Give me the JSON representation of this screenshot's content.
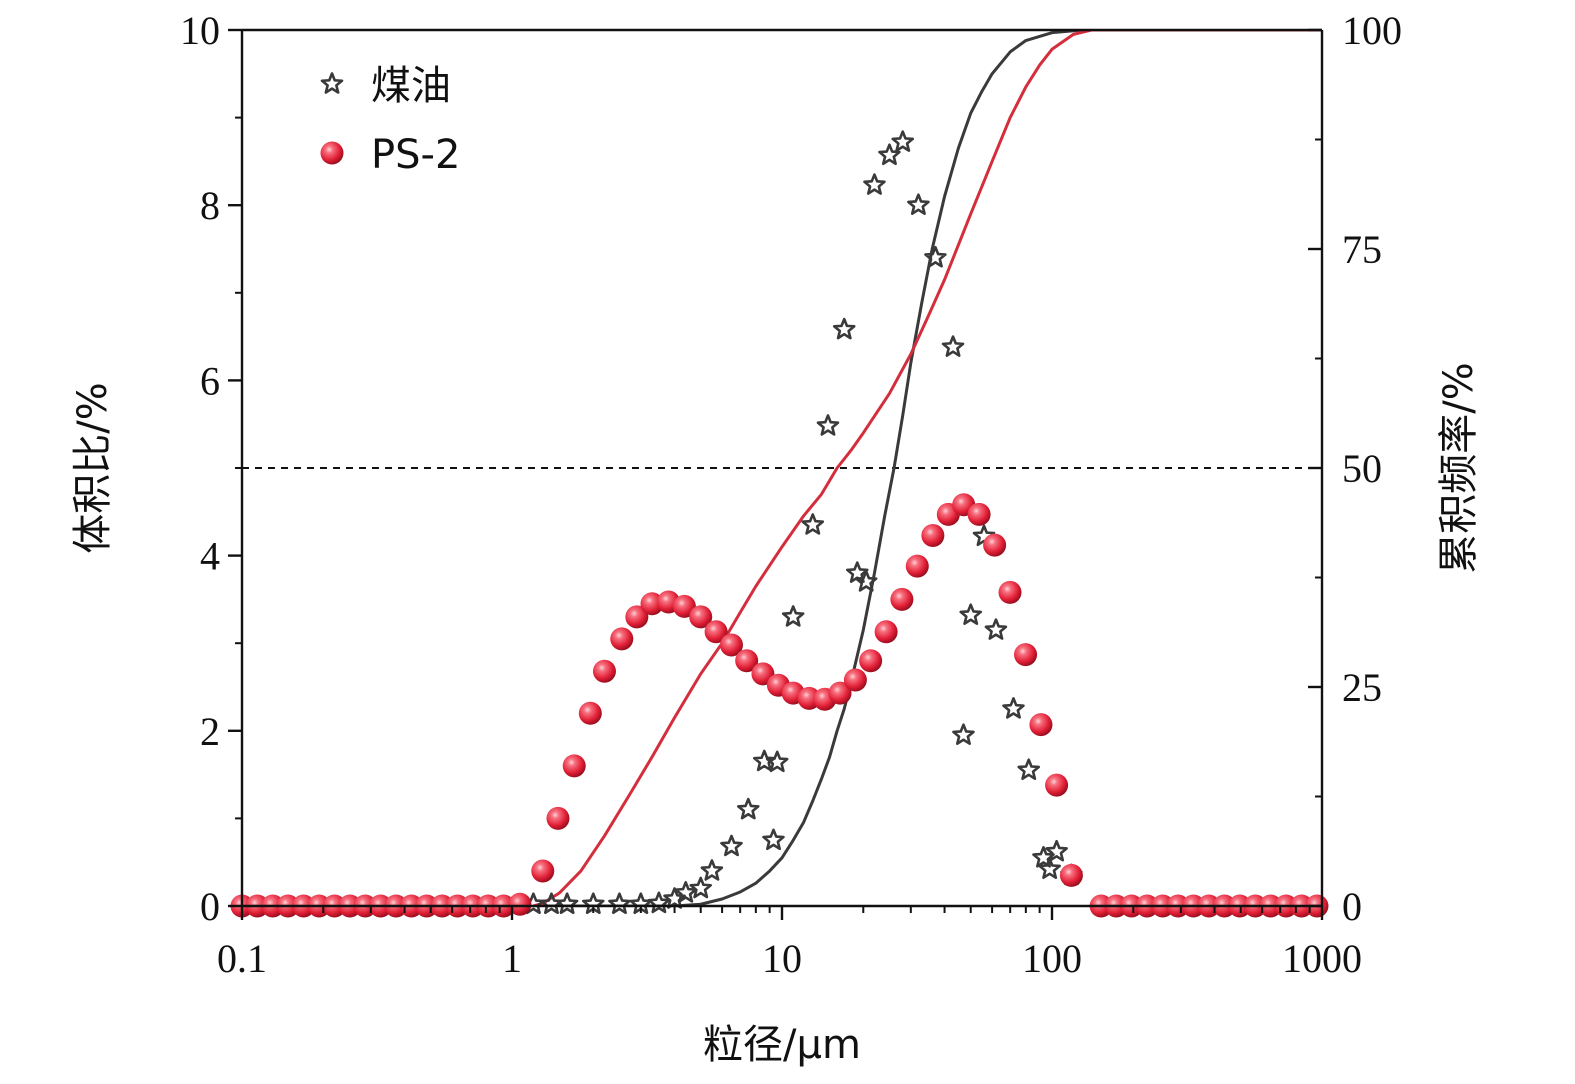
{
  "chart_data": {
    "type": "scatter",
    "x_scale": "log",
    "xlim": [
      0.1,
      1000
    ],
    "ylim_left": [
      0,
      10
    ],
    "ylim_right": [
      0,
      100
    ],
    "xlabel": "粒径/μm",
    "ylabel_left": "体积比/%",
    "ylabel_right": "累积频率/%",
    "x_ticks": [
      0.1,
      1,
      10,
      100,
      1000
    ],
    "x_tick_labels": [
      "0.1",
      "1",
      "10",
      "100",
      "1000"
    ],
    "y_left_ticks": [
      0,
      2,
      4,
      6,
      8,
      10
    ],
    "y_left_tick_labels": [
      "0",
      "2",
      "4",
      "6",
      "8",
      "10"
    ],
    "y_right_ticks": [
      0,
      25,
      50,
      75,
      100
    ],
    "y_right_tick_labels": [
      "0",
      "25",
      "50",
      "75",
      "100"
    ],
    "reference_line": {
      "axis": "right",
      "value": 50,
      "style": "dashed"
    },
    "legend_position": "top-left",
    "series": [
      {
        "name": "煤油",
        "kind": "scatter",
        "axis": "left",
        "marker": "star",
        "color": "#3a3a3a",
        "points": [
          [
            1.2,
            0.02
          ],
          [
            1.4,
            0.02
          ],
          [
            1.6,
            0.02
          ],
          [
            2.0,
            0.02
          ],
          [
            2.5,
            0.02
          ],
          [
            3.0,
            0.02
          ],
          [
            3.5,
            0.03
          ],
          [
            4.0,
            0.08
          ],
          [
            4.4,
            0.15
          ],
          [
            5.0,
            0.2
          ],
          [
            5.5,
            0.4
          ],
          [
            6.5,
            0.68
          ],
          [
            7.5,
            1.1
          ],
          [
            8.6,
            1.65
          ],
          [
            9.6,
            1.64
          ],
          [
            9.3,
            0.75
          ],
          [
            11.0,
            3.3
          ],
          [
            13.0,
            4.35
          ],
          [
            14.8,
            5.48
          ],
          [
            17.0,
            6.58
          ],
          [
            19.0,
            3.8
          ],
          [
            20.5,
            3.7
          ],
          [
            22.0,
            8.23
          ],
          [
            25.0,
            8.57
          ],
          [
            28.0,
            8.72
          ],
          [
            32.0,
            8.0
          ],
          [
            37.0,
            7.4
          ],
          [
            43.0,
            6.38
          ],
          [
            47.0,
            1.95
          ],
          [
            50.0,
            3.32
          ],
          [
            56.0,
            4.22
          ],
          [
            62.0,
            3.15
          ],
          [
            72.0,
            2.25
          ],
          [
            82.0,
            1.55
          ],
          [
            93.0,
            0.55
          ],
          [
            98.0,
            0.42
          ],
          [
            104.0,
            0.62
          ],
          [
            118.0,
            0.35
          ]
        ]
      },
      {
        "name": "PS-2",
        "kind": "scatter",
        "axis": "left",
        "marker": "sphere",
        "color": "#e8334a",
        "points": [
          [
            0.1,
            0.0
          ],
          [
            0.114,
            0.0
          ],
          [
            0.13,
            0.0
          ],
          [
            0.148,
            0.0
          ],
          [
            0.169,
            0.0
          ],
          [
            0.193,
            0.0
          ],
          [
            0.22,
            0.0
          ],
          [
            0.251,
            0.0
          ],
          [
            0.286,
            0.0
          ],
          [
            0.326,
            0.0
          ],
          [
            0.372,
            0.0
          ],
          [
            0.424,
            0.0
          ],
          [
            0.483,
            0.0
          ],
          [
            0.551,
            0.0
          ],
          [
            0.628,
            0.0
          ],
          [
            0.716,
            0.0
          ],
          [
            0.816,
            0.0
          ],
          [
            0.93,
            0.0
          ],
          [
            1.07,
            0.02
          ],
          [
            1.3,
            0.4
          ],
          [
            1.48,
            1.0
          ],
          [
            1.7,
            1.6
          ],
          [
            1.95,
            2.2
          ],
          [
            2.2,
            2.68
          ],
          [
            2.55,
            3.05
          ],
          [
            2.9,
            3.3
          ],
          [
            3.3,
            3.45
          ],
          [
            3.8,
            3.47
          ],
          [
            4.35,
            3.42
          ],
          [
            5.0,
            3.3
          ],
          [
            5.7,
            3.13
          ],
          [
            6.5,
            2.98
          ],
          [
            7.4,
            2.8
          ],
          [
            8.5,
            2.65
          ],
          [
            9.7,
            2.52
          ],
          [
            11.0,
            2.43
          ],
          [
            12.6,
            2.37
          ],
          [
            14.4,
            2.36
          ],
          [
            16.4,
            2.43
          ],
          [
            18.7,
            2.58
          ],
          [
            21.3,
            2.8
          ],
          [
            24.3,
            3.13
          ],
          [
            27.8,
            3.5
          ],
          [
            31.7,
            3.88
          ],
          [
            36.2,
            4.23
          ],
          [
            41.3,
            4.47
          ],
          [
            47.1,
            4.58
          ],
          [
            53.7,
            4.47
          ],
          [
            61.3,
            4.12
          ],
          [
            69.9,
            3.58
          ],
          [
            79.8,
            2.87
          ],
          [
            91.0,
            2.07
          ],
          [
            104.0,
            1.38
          ],
          [
            118.0,
            0.35
          ],
          [
            152,
            0.0
          ],
          [
            173,
            0.0
          ],
          [
            197,
            0.0
          ],
          [
            225,
            0.0
          ],
          [
            257,
            0.0
          ],
          [
            293,
            0.0
          ],
          [
            334,
            0.0
          ],
          [
            381,
            0.0
          ],
          [
            435,
            0.0
          ],
          [
            496,
            0.0
          ],
          [
            566,
            0.0
          ],
          [
            645,
            0.0
          ],
          [
            736,
            0.0
          ],
          [
            840,
            0.0
          ],
          [
            958,
            0.0
          ]
        ]
      },
      {
        "kind": "line",
        "axis": "right",
        "color": "#3a3a3a",
        "points": [
          [
            1.2,
            0
          ],
          [
            4.0,
            0
          ],
          [
            5.0,
            0.2
          ],
          [
            6.0,
            0.8
          ],
          [
            7.0,
            1.6
          ],
          [
            8.0,
            2.6
          ],
          [
            9.0,
            4.0
          ],
          [
            10.0,
            5.5
          ],
          [
            11.0,
            7.5
          ],
          [
            12.0,
            9.5
          ],
          [
            13.0,
            12.0
          ],
          [
            14.0,
            14.5
          ],
          [
            15.0,
            17.0
          ],
          [
            16.0,
            20.0
          ],
          [
            17.0,
            22.5
          ],
          [
            18.0,
            25.5
          ],
          [
            20.0,
            31.5
          ],
          [
            22.0,
            38.0
          ],
          [
            24.0,
            44.5
          ],
          [
            26.0,
            50.0
          ],
          [
            28.0,
            56.0
          ],
          [
            30.0,
            62.0
          ],
          [
            33.0,
            69.0
          ],
          [
            36.0,
            75.0
          ],
          [
            40.0,
            81.0
          ],
          [
            45.0,
            86.5
          ],
          [
            50.0,
            90.5
          ],
          [
            55.0,
            93.0
          ],
          [
            60.0,
            95.0
          ],
          [
            70.0,
            97.5
          ],
          [
            80.0,
            98.8
          ],
          [
            100.0,
            99.7
          ],
          [
            130.0,
            100
          ],
          [
            1000.0,
            100
          ]
        ]
      },
      {
        "kind": "line",
        "axis": "right",
        "color": "#d42e3d",
        "points": [
          [
            1.2,
            0
          ],
          [
            1.3,
            0.3
          ],
          [
            1.5,
            1.5
          ],
          [
            1.8,
            4.0
          ],
          [
            2.2,
            8.0
          ],
          [
            2.7,
            12.5
          ],
          [
            3.3,
            17.0
          ],
          [
            4.0,
            21.5
          ],
          [
            5.0,
            26.5
          ],
          [
            6.0,
            30.0
          ],
          [
            7.0,
            33.5
          ],
          [
            8.0,
            36.5
          ],
          [
            10.0,
            41.0
          ],
          [
            12.0,
            44.5
          ],
          [
            14.0,
            47.0
          ],
          [
            16.0,
            50.0
          ],
          [
            18.0,
            52.0
          ],
          [
            20.0,
            54.0
          ],
          [
            25.0,
            58.5
          ],
          [
            30.0,
            63.0
          ],
          [
            35.0,
            67.5
          ],
          [
            40.0,
            71.5
          ],
          [
            50.0,
            79.0
          ],
          [
            60.0,
            85.0
          ],
          [
            70.0,
            90.0
          ],
          [
            80.0,
            93.5
          ],
          [
            90.0,
            96.0
          ],
          [
            100.0,
            97.8
          ],
          [
            120.0,
            99.5
          ],
          [
            140.0,
            100
          ],
          [
            1000.0,
            100
          ]
        ]
      }
    ]
  }
}
